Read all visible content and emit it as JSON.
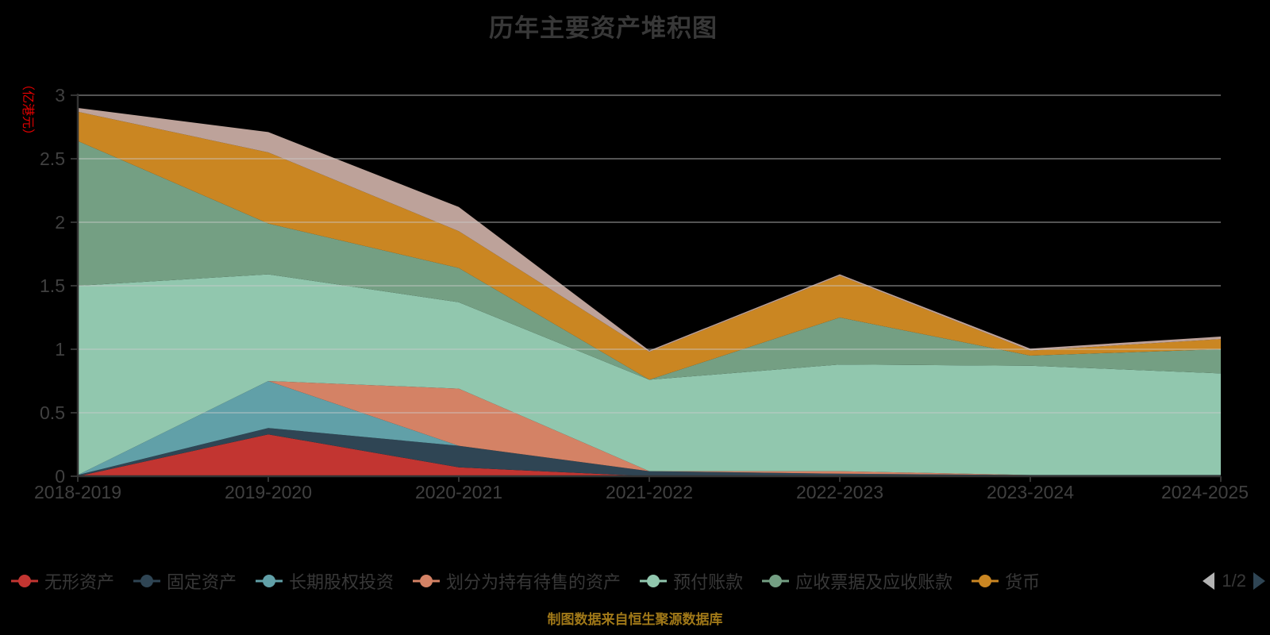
{
  "title": "历年主要资产堆积图",
  "source_note": "制图数据来自恒生聚源数据库",
  "colors": {
    "background": "#000000",
    "title_text": "#383838",
    "axis_text": "#404040",
    "axis_line": "#333333",
    "grid_line": "#cccccc",
    "yaxis_name_text": "#e00000",
    "legend_text": "#383838",
    "source_note_text": "#a07818",
    "pager_prev_arrow": "#b3b3b3",
    "pager_next_arrow": "#2f4554",
    "pager_text": "#383838"
  },
  "legend": {
    "items": [
      {
        "label": "无形资产",
        "color": "#c23531"
      },
      {
        "label": "固定资产",
        "color": "#2f4554"
      },
      {
        "label": "长期股权投资",
        "color": "#61a0a8"
      },
      {
        "label": "划分为持有待售的资产",
        "color": "#d48265"
      },
      {
        "label": "预付账款",
        "color": "#91c7ae"
      },
      {
        "label": "应收票据及应收账款",
        "color": "#749f83"
      },
      {
        "label": "货币",
        "color": "#ca8622"
      }
    ],
    "pager": {
      "label": "1/2"
    }
  },
  "chart_data": {
    "type": "area",
    "stacked": true,
    "title": "历年主要资产堆积图",
    "ylabel": "（亿港元）",
    "xlabel": "",
    "ylim": [
      0,
      3
    ],
    "y_ticks": [
      0,
      0.5,
      1,
      1.5,
      2,
      2.5,
      3
    ],
    "grid": true,
    "legend_position": "bottom",
    "categories": [
      "2018-2019",
      "2019-2020",
      "2020-2021",
      "2021-2022",
      "2022-2023",
      "2023-2024",
      "2024-2025"
    ],
    "series": [
      {
        "name": "无形资产",
        "color": "#c23531",
        "values": [
          0,
          0.33,
          0.07,
          0,
          0,
          0,
          0
        ]
      },
      {
        "name": "固定资产",
        "color": "#2f4554",
        "values": [
          0.01,
          0.05,
          0.17,
          0.04,
          0.02,
          0.01,
          0.01
        ]
      },
      {
        "name": "长期股权投资",
        "color": "#61a0a8",
        "values": [
          0,
          0.37,
          0,
          0,
          0,
          0,
          0
        ]
      },
      {
        "name": "划分为持有待售的资产",
        "color": "#d48265",
        "values": [
          0,
          0,
          0.45,
          0,
          0.02,
          0,
          0
        ]
      },
      {
        "name": "预付账款",
        "color": "#91c7ae",
        "values": [
          1.49,
          0.84,
          0.68,
          0.72,
          0.84,
          0.86,
          0.8
        ]
      },
      {
        "name": "应收票据及应收账款",
        "color": "#749f83",
        "values": [
          1.14,
          0.4,
          0.27,
          0,
          0.37,
          0.08,
          0.19
        ]
      },
      {
        "name": "货币",
        "color": "#ca8622",
        "values": [
          0.23,
          0.56,
          0.29,
          0.22,
          0.33,
          0.04,
          0.08
        ]
      },
      {
        "name": "",
        "color": "#bda29a",
        "values": [
          0.03,
          0.16,
          0.19,
          0.01,
          0.01,
          0.015,
          0.02
        ]
      }
    ]
  }
}
